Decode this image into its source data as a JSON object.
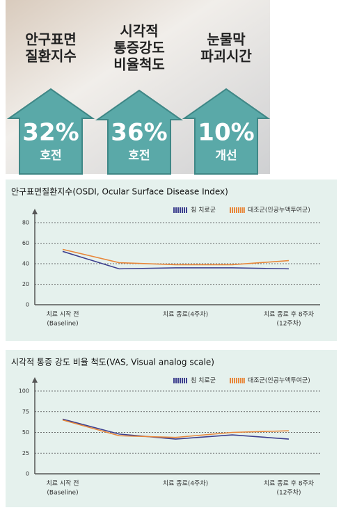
{
  "banner": [
    {
      "title_lines": [
        "안구표면",
        "질환지수"
      ],
      "value": "32%",
      "caption": "호전"
    },
    {
      "title_lines": [
        "시각적",
        "통증강도",
        "비율척도"
      ],
      "value": "36%",
      "caption": "호전"
    },
    {
      "title_lines": [
        "눈물막",
        "파괴시간"
      ],
      "value": "10%",
      "caption": "개선"
    }
  ],
  "chart_data": [
    {
      "type": "line",
      "title": "안구표면질환지수(OSDI, Ocular Surface Disease Index)",
      "categories": [
        [
          "치료 시작 전",
          "(Baseline)"
        ],
        null,
        [
          "치료 종료(4주차)"
        ],
        null,
        [
          "치료 종료 후 8주차",
          "(12주차)"
        ]
      ],
      "series": [
        {
          "name": "침 치료군",
          "color": "#3d3f8e",
          "values": [
            52,
            35,
            36,
            36,
            35
          ]
        },
        {
          "name": "대조군(인공누액투여군)",
          "color": "#e8873a",
          "values": [
            54,
            41,
            39,
            39,
            43
          ]
        }
      ],
      "ylim": [
        0,
        80
      ],
      "yticks": [
        0,
        20,
        40,
        60,
        80
      ],
      "grid": true,
      "legend": "top-right"
    },
    {
      "type": "line",
      "title": "시각적 통증 강도 비율 척도(VAS, Visual analog scale)",
      "categories": [
        [
          "치료 시작 전",
          "(Baseline)"
        ],
        null,
        [
          "치료 종료(4주차)"
        ],
        null,
        [
          "치료 종료 후 8주차",
          "(12주차)"
        ]
      ],
      "series": [
        {
          "name": "침 치료군",
          "color": "#3d3f8e",
          "values": [
            66,
            48,
            42,
            47,
            42
          ]
        },
        {
          "name": "대조군(인공누액투여군)",
          "color": "#e8873a",
          "values": [
            65,
            46,
            44,
            50,
            52
          ]
        }
      ],
      "ylim": [
        0,
        100
      ],
      "yticks": [
        0,
        25,
        50,
        75,
        100
      ],
      "grid": true,
      "legend": "top-right"
    }
  ]
}
